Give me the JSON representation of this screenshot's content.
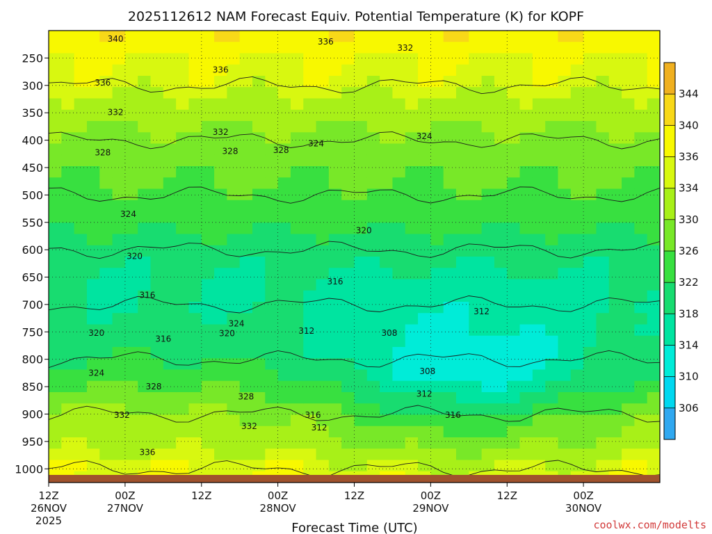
{
  "chart_data": {
    "type": "heatmap",
    "title": "2025112612 NAM Forecast Equiv. Potential Temperature (K) for KOPF",
    "xlabel": "Forecast Time (UTC)",
    "ylabel": "",
    "y_levels_hpa": [
      1000,
      950,
      900,
      850,
      800,
      750,
      700,
      650,
      600,
      550,
      500,
      450,
      400,
      350,
      300,
      250
    ],
    "y_tick_labels": [
      "1000",
      "950",
      "900",
      "850",
      "800",
      "750",
      "700",
      "650",
      "600",
      "550",
      "500",
      "450",
      "400",
      "350",
      "300",
      "250"
    ],
    "ylim": [
      1025,
      200
    ],
    "x_hours": [
      0,
      12,
      24,
      36,
      48,
      60,
      72,
      84,
      96
    ],
    "x_ticks": [
      {
        "time": "12Z",
        "date": "26NOV",
        "year": "2025"
      },
      {
        "time": "00Z",
        "date": "27NOV",
        "year": ""
      },
      {
        "time": "12Z",
        "date": "",
        "year": ""
      },
      {
        "time": "00Z",
        "date": "28NOV",
        "year": ""
      },
      {
        "time": "12Z",
        "date": "",
        "year": ""
      },
      {
        "time": "00Z",
        "date": "29NOV",
        "year": ""
      },
      {
        "time": "12Z",
        "date": "",
        "year": ""
      },
      {
        "time": "00Z",
        "date": "30NOV",
        "year": ""
      }
    ],
    "colorbar": {
      "levels": [
        306,
        310,
        314,
        318,
        322,
        326,
        330,
        334,
        336,
        340,
        344
      ],
      "labels": [
        "306",
        "310",
        "314",
        "318",
        "322",
        "326",
        "330",
        "334",
        "336",
        "340",
        "344"
      ],
      "colors": [
        "#30a8f0",
        "#00d8f0",
        "#00ecd8",
        "#00e4a0",
        "#18dc70",
        "#38e040",
        "#78e828",
        "#a8f018",
        "#d8f810",
        "#f8f800",
        "#f8d818",
        "#f0b020"
      ]
    },
    "base_profile": [
      {
        "p": 1000,
        "theta_e": 336
      },
      {
        "p": 950,
        "theta_e": 333
      },
      {
        "p": 900,
        "theta_e": 331
      },
      {
        "p": 850,
        "theta_e": 326
      },
      {
        "p": 800,
        "theta_e": 322
      },
      {
        "p": 750,
        "theta_e": 320
      },
      {
        "p": 700,
        "theta_e": 318
      },
      {
        "p": 650,
        "theta_e": 318
      },
      {
        "p": 600,
        "theta_e": 320
      },
      {
        "p": 550,
        "theta_e": 323
      },
      {
        "p": 500,
        "theta_e": 325
      },
      {
        "p": 450,
        "theta_e": 327
      },
      {
        "p": 400,
        "theta_e": 329
      },
      {
        "p": 350,
        "theta_e": 332
      },
      {
        "p": 300,
        "theta_e": 335
      },
      {
        "p": 250,
        "theta_e": 336
      },
      {
        "p": 200,
        "theta_e": 340
      }
    ],
    "cold_anomaly": {
      "center_hour": 66,
      "center_p": 840,
      "depth": 12
    },
    "contour_labels": [
      {
        "text": "340",
        "hour": 10.5,
        "p": 215
      },
      {
        "text": "336",
        "hour": 43.5,
        "p": 220
      },
      {
        "text": "332",
        "hour": 56,
        "p": 232
      },
      {
        "text": "336",
        "hour": 27,
        "p": 272
      },
      {
        "text": "336",
        "hour": 8.5,
        "p": 295
      },
      {
        "text": "332",
        "hour": 10.5,
        "p": 349
      },
      {
        "text": "332",
        "hour": 27,
        "p": 385
      },
      {
        "text": "328",
        "hour": 8.5,
        "p": 423
      },
      {
        "text": "328",
        "hour": 28.5,
        "p": 420
      },
      {
        "text": "328",
        "hour": 36.5,
        "p": 418
      },
      {
        "text": "324",
        "hour": 42,
        "p": 406
      },
      {
        "text": "324",
        "hour": 59,
        "p": 393
      },
      {
        "text": "324",
        "hour": 12.5,
        "p": 535
      },
      {
        "text": "320",
        "hour": 49.5,
        "p": 565
      },
      {
        "text": "320",
        "hour": 13.5,
        "p": 612
      },
      {
        "text": "316",
        "hour": 45,
        "p": 658
      },
      {
        "text": "316",
        "hour": 15.5,
        "p": 683
      },
      {
        "text": "312",
        "hour": 68,
        "p": 713
      },
      {
        "text": "324",
        "hour": 29.5,
        "p": 735
      },
      {
        "text": "320",
        "hour": 7.5,
        "p": 752
      },
      {
        "text": "320",
        "hour": 28,
        "p": 753
      },
      {
        "text": "312",
        "hour": 40.5,
        "p": 748
      },
      {
        "text": "308",
        "hour": 53.5,
        "p": 752
      },
      {
        "text": "316",
        "hour": 18,
        "p": 763
      },
      {
        "text": "324",
        "hour": 7.5,
        "p": 825
      },
      {
        "text": "308",
        "hour": 59.5,
        "p": 822
      },
      {
        "text": "328",
        "hour": 16.5,
        "p": 850
      },
      {
        "text": "312",
        "hour": 59,
        "p": 863
      },
      {
        "text": "328",
        "hour": 31,
        "p": 868
      },
      {
        "text": "332",
        "hour": 11.5,
        "p": 902
      },
      {
        "text": "316",
        "hour": 41.5,
        "p": 902
      },
      {
        "text": "316",
        "hour": 63.5,
        "p": 902
      },
      {
        "text": "332",
        "hour": 31.5,
        "p": 922
      },
      {
        "text": "312",
        "hour": 42.5,
        "p": 925
      },
      {
        "text": "336",
        "hour": 15.5,
        "p": 970
      }
    ]
  },
  "footer": {
    "credit": "coolwx.com/modelts"
  }
}
